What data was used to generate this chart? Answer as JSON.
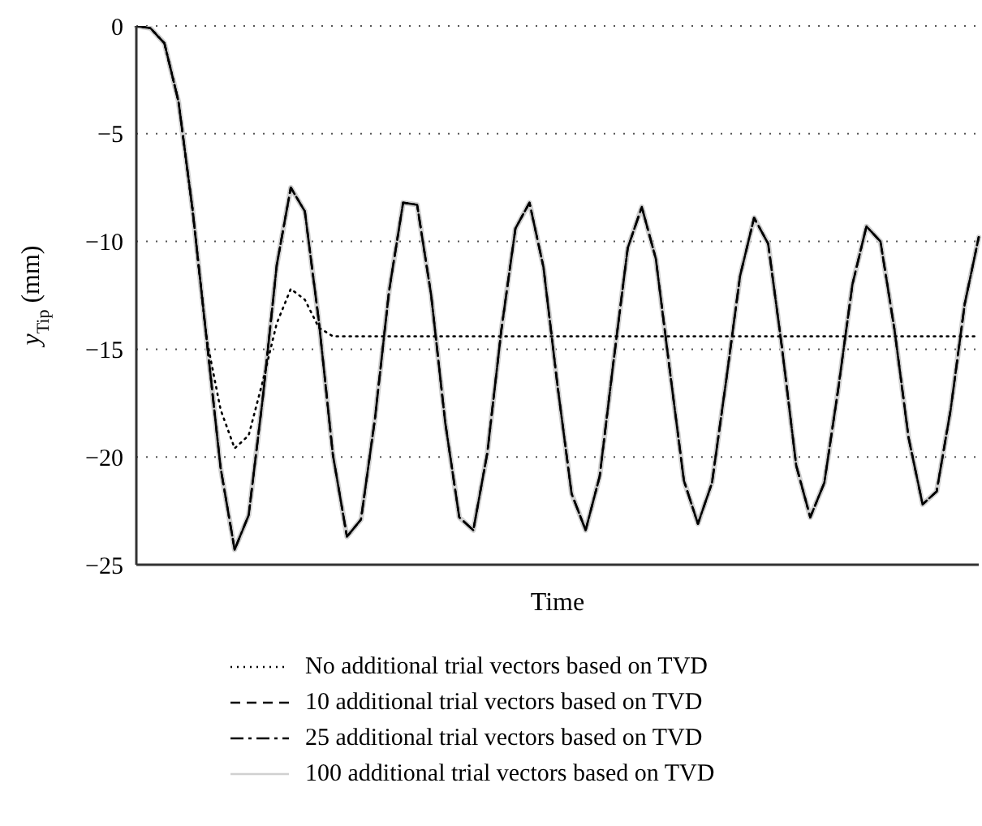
{
  "chart_data": {
    "type": "line",
    "xlabel": "Time",
    "ylabel": "y$_{Tip}$ (mm)",
    "categories": [
      null,
      null,
      null,
      null,
      null,
      null,
      null,
      null,
      null,
      null,
      null,
      null,
      null,
      null,
      null,
      null,
      null,
      null,
      null,
      null,
      null,
      null,
      null,
      null,
      null,
      null,
      null,
      null,
      null,
      null,
      null,
      null,
      null,
      null,
      null,
      null,
      null,
      null,
      null,
      null,
      null,
      null,
      null,
      null,
      null,
      null,
      null,
      null,
      null,
      null,
      null,
      null,
      null,
      null,
      null,
      null,
      null,
      null,
      null,
      null,
      null
    ],
    "ylim": [
      -25,
      0
    ],
    "yticks": [
      {
        "value": -25,
        "label": "−25"
      },
      {
        "value": -20,
        "label": "−20"
      },
      {
        "value": -15,
        "label": "−15"
      },
      {
        "value": -10,
        "label": "−10"
      },
      {
        "value": -5,
        "label": "−5"
      },
      0
    ],
    "grid": "y",
    "tick_labels": "y",
    "legend": "bottom",
    "marker": "none",
    "series": [
      {
        "name": "No additional trial vectors based on TVD",
        "color": "#000000",
        "line_style": "dotted",
        "values": [
          0,
          -0.1,
          -0.8,
          -3.5,
          -8.5,
          -14.5,
          -17.8,
          -19.6,
          -19.0,
          -16.5,
          -13.8,
          -12.2,
          -12.7,
          -14.0,
          -14.4,
          -14.4,
          -14.4,
          -14.4,
          -14.4,
          -14.4,
          -14.4,
          -14.4,
          -14.4,
          -14.4,
          -14.4,
          -14.4,
          -14.4,
          -14.4,
          -14.4,
          -14.4,
          -14.4,
          -14.4,
          -14.4,
          -14.4,
          -14.4,
          -14.4,
          -14.4,
          -14.4,
          -14.4,
          -14.4,
          -14.4,
          -14.4,
          -14.4,
          -14.4,
          -14.4,
          -14.4,
          -14.4,
          -14.4,
          -14.4,
          -14.4,
          -14.4,
          -14.4,
          -14.4,
          -14.4,
          -14.4,
          -14.4,
          -14.4,
          -14.4,
          -14.4,
          -14.4,
          -14.4
        ]
      },
      {
        "name": "10 additional trial vectors based on TVD",
        "color": "#000000",
        "line_style": "dashed",
        "values": [
          0,
          -0.1,
          -0.8,
          -3.5,
          -8.5,
          -14.5,
          -20.5,
          -24.3,
          -22.7,
          -17.3,
          -11.1,
          -7.5,
          -8.6,
          -13.7,
          -19.9,
          -23.7,
          -22.9,
          -18.2,
          -12.3,
          -8.2,
          -8.3,
          -12.5,
          -18.4,
          -22.8,
          -23.4,
          -19.8,
          -14.1,
          -9.4,
          -8.2,
          -11.2,
          -16.7,
          -21.7,
          -23.4,
          -20.9,
          -15.5,
          -10.3,
          -8.4,
          -10.8,
          -16.0,
          -21.1,
          -23.1,
          -21.2,
          -16.5,
          -11.6,
          -8.9,
          -10.1,
          -15.0,
          -20.4,
          -22.8,
          -21.2,
          -16.8,
          -12.0,
          -9.3,
          -10.0,
          -14.1,
          -19.1,
          -22.2,
          -21.6,
          -17.8,
          -12.9,
          -9.8
        ]
      },
      {
        "name": "25 additional trial vectors based on TVD",
        "color": "#000000",
        "line_style": "dashdot",
        "values": [
          0,
          -0.1,
          -0.8,
          -3.5,
          -8.5,
          -14.5,
          -20.5,
          -24.3,
          -22.7,
          -17.3,
          -11.1,
          -7.5,
          -8.6,
          -13.7,
          -19.9,
          -23.7,
          -22.9,
          -18.2,
          -12.3,
          -8.2,
          -8.3,
          -12.5,
          -18.4,
          -22.8,
          -23.4,
          -19.8,
          -14.1,
          -9.4,
          -8.2,
          -11.2,
          -16.7,
          -21.7,
          -23.4,
          -20.9,
          -15.5,
          -10.3,
          -8.4,
          -10.8,
          -16.0,
          -21.1,
          -23.1,
          -21.2,
          -16.5,
          -11.6,
          -8.9,
          -10.1,
          -15.0,
          -20.4,
          -22.8,
          -21.2,
          -16.8,
          -12.0,
          -9.3,
          -10.0,
          -14.1,
          -19.1,
          -22.2,
          -21.6,
          -17.8,
          -12.9,
          -9.8
        ]
      },
      {
        "name": "100 additional trial vectors based on TVD",
        "color": "#d0d0d0",
        "line_style": "solid",
        "values": [
          0,
          -0.1,
          -0.8,
          -3.5,
          -8.5,
          -14.5,
          -20.5,
          -24.3,
          -22.7,
          -17.3,
          -11.1,
          -7.5,
          -8.6,
          -13.7,
          -19.9,
          -23.7,
          -22.9,
          -18.2,
          -12.3,
          -8.2,
          -8.3,
          -12.5,
          -18.4,
          -22.8,
          -23.4,
          -19.8,
          -14.1,
          -9.4,
          -8.2,
          -11.2,
          -16.7,
          -21.7,
          -23.4,
          -20.9,
          -15.5,
          -10.3,
          -8.4,
          -10.8,
          -16.0,
          -21.1,
          -23.1,
          -21.2,
          -16.5,
          -11.6,
          -8.9,
          -10.1,
          -15.0,
          -20.4,
          -22.8,
          -21.2,
          -16.8,
          -12.0,
          -9.3,
          -10.0,
          -14.1,
          -19.1,
          -22.2,
          -21.6,
          -17.8,
          -12.9,
          -9.8
        ]
      }
    ]
  }
}
